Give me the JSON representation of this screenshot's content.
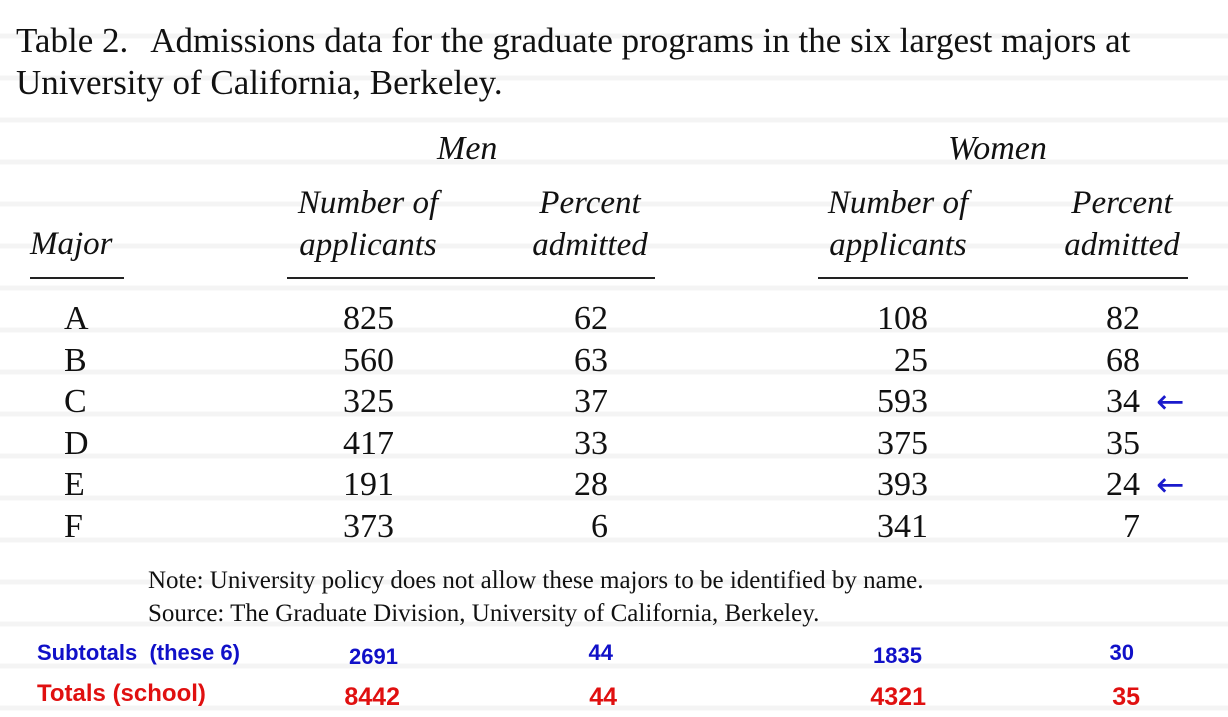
{
  "caption": {
    "table_number": "Table 2.",
    "text": "Admissions data for the graduate programs in the six largest majors at University of California, Berkeley."
  },
  "groups": {
    "men": "Men",
    "women": "Women"
  },
  "headers": {
    "major": "Major",
    "men_applicants": [
      "Number of",
      "applicants"
    ],
    "men_percent": [
      "Percent",
      "admitted"
    ],
    "women_applicants": [
      "Number of",
      "applicants"
    ],
    "women_percent": [
      "Percent",
      "admitted"
    ]
  },
  "rows": [
    {
      "major": "A",
      "men_applicants": "825",
      "men_percent": "62",
      "women_applicants": "108",
      "women_percent": "82",
      "arrow": ""
    },
    {
      "major": "B",
      "men_applicants": "560",
      "men_percent": "63",
      "women_applicants": "25",
      "women_percent": "68",
      "arrow": ""
    },
    {
      "major": "C",
      "men_applicants": "325",
      "men_percent": "37",
      "women_applicants": "593",
      "women_percent": "34",
      "arrow": "←"
    },
    {
      "major": "D",
      "men_applicants": "417",
      "men_percent": "33",
      "women_applicants": "375",
      "women_percent": "35",
      "arrow": ""
    },
    {
      "major": "E",
      "men_applicants": "191",
      "men_percent": "28",
      "women_applicants": "393",
      "women_percent": "24",
      "arrow": "←"
    },
    {
      "major": "F",
      "men_applicants": "373",
      "men_percent": "6",
      "women_applicants": "341",
      "women_percent": "7",
      "arrow": ""
    }
  ],
  "notes": {
    "note": "Note: University policy does not allow these majors to be identified by name.",
    "source": "Source: The Graduate Division, University of California, Berkeley."
  },
  "subtotals": {
    "label": "Subtotals  (these 6)",
    "men_applicants": "2691",
    "men_percent": "44",
    "women_applicants": "1835",
    "women_percent": "30",
    "color": "#1010c8"
  },
  "totals": {
    "label": "Totals (school)",
    "men_applicants": "8442",
    "men_percent": "44",
    "women_applicants": "4321",
    "women_percent": "35",
    "color": "#e01010"
  },
  "annotation_arrow_color": "#1a1acc"
}
